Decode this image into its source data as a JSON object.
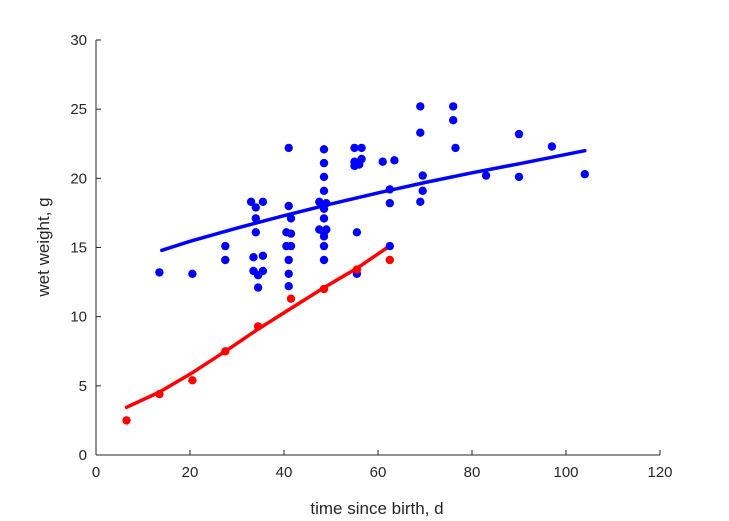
{
  "chart_data": {
    "type": "scatter",
    "title": "",
    "xlabel": "time since birth, d",
    "ylabel": "wet weight, g",
    "xlim": [
      0,
      120
    ],
    "ylim": [
      0,
      30
    ],
    "xticks": [
      0,
      20,
      40,
      60,
      80,
      100,
      120
    ],
    "yticks": [
      0,
      5,
      10,
      15,
      20,
      25,
      30
    ],
    "grid": false,
    "legend": "none",
    "series": [
      {
        "color": "#0000ff",
        "kind": "points",
        "points": [
          [
            13.5,
            13.2
          ],
          [
            20.5,
            13.1
          ],
          [
            27.5,
            15.1
          ],
          [
            27.5,
            14.1
          ],
          [
            33.0,
            18.3
          ],
          [
            33.5,
            14.3
          ],
          [
            33.5,
            13.3
          ],
          [
            34.0,
            17.9
          ],
          [
            34.0,
            17.1
          ],
          [
            34.0,
            16.1
          ],
          [
            34.5,
            12.1
          ],
          [
            34.5,
            13.0
          ],
          [
            35.5,
            18.3
          ],
          [
            35.5,
            14.4
          ],
          [
            35.5,
            13.3
          ],
          [
            41.0,
            22.2
          ],
          [
            41.0,
            18.0
          ],
          [
            41.5,
            17.1
          ],
          [
            40.5,
            16.1
          ],
          [
            40.5,
            15.1
          ],
          [
            41.5,
            16.0
          ],
          [
            41.5,
            15.1
          ],
          [
            41.0,
            14.1
          ],
          [
            41.0,
            13.1
          ],
          [
            41.0,
            12.2
          ],
          [
            47.5,
            18.3
          ],
          [
            47.5,
            16.3
          ],
          [
            48.5,
            22.1
          ],
          [
            48.5,
            21.1
          ],
          [
            48.5,
            20.1
          ],
          [
            48.5,
            19.1
          ],
          [
            48.5,
            18.1
          ],
          [
            48.5,
            17.1
          ],
          [
            48.5,
            16.1
          ],
          [
            48.5,
            15.1
          ],
          [
            48.5,
            14.1
          ],
          [
            49.0,
            18.2
          ],
          [
            49.0,
            16.3
          ],
          [
            48.5,
            17.8
          ],
          [
            48.5,
            15.8
          ],
          [
            55.0,
            22.2
          ],
          [
            55.0,
            21.2
          ],
          [
            55.0,
            20.9
          ],
          [
            55.5,
            16.1
          ],
          [
            55.5,
            13.1
          ],
          [
            56.5,
            22.2
          ],
          [
            56.5,
            21.4
          ],
          [
            56.0,
            21.0
          ],
          [
            61.0,
            21.2
          ],
          [
            62.5,
            19.2
          ],
          [
            62.5,
            18.2
          ],
          [
            62.5,
            15.1
          ],
          [
            63.5,
            21.3
          ],
          [
            69.0,
            25.2
          ],
          [
            69.0,
            23.3
          ],
          [
            69.5,
            20.2
          ],
          [
            69.5,
            19.1
          ],
          [
            69.0,
            18.3
          ],
          [
            76.0,
            25.2
          ],
          [
            76.0,
            24.2
          ],
          [
            76.5,
            22.2
          ],
          [
            83.0,
            20.2
          ],
          [
            90.0,
            23.2
          ],
          [
            90.0,
            20.1
          ],
          [
            97.0,
            22.3
          ],
          [
            104.0,
            20.3
          ]
        ]
      },
      {
        "color": "#0000ff",
        "kind": "line",
        "points": [
          [
            14,
            14.8
          ],
          [
            20,
            15.45
          ],
          [
            30,
            16.4
          ],
          [
            40,
            17.3
          ],
          [
            50,
            18.15
          ],
          [
            60,
            18.95
          ],
          [
            70,
            19.7
          ],
          [
            80,
            20.4
          ],
          [
            90,
            21.05
          ],
          [
            104,
            22.0
          ]
        ]
      },
      {
        "color": "#ff0000",
        "kind": "points",
        "points": [
          [
            6.5,
            2.5
          ],
          [
            13.5,
            4.4
          ],
          [
            20.5,
            5.4
          ],
          [
            27.5,
            7.5
          ],
          [
            34.5,
            9.3
          ],
          [
            41.5,
            11.3
          ],
          [
            48.5,
            12.0
          ],
          [
            55.5,
            13.4
          ],
          [
            62.5,
            14.1
          ]
        ]
      },
      {
        "color": "#ff0000",
        "kind": "line",
        "points": [
          [
            6.5,
            3.45
          ],
          [
            13.5,
            4.55
          ],
          [
            20.5,
            5.95
          ],
          [
            27.5,
            7.5
          ],
          [
            34.5,
            9.1
          ],
          [
            41.5,
            10.6
          ],
          [
            48.5,
            12.1
          ],
          [
            55.5,
            13.5
          ],
          [
            62.0,
            15.0
          ]
        ]
      }
    ]
  }
}
